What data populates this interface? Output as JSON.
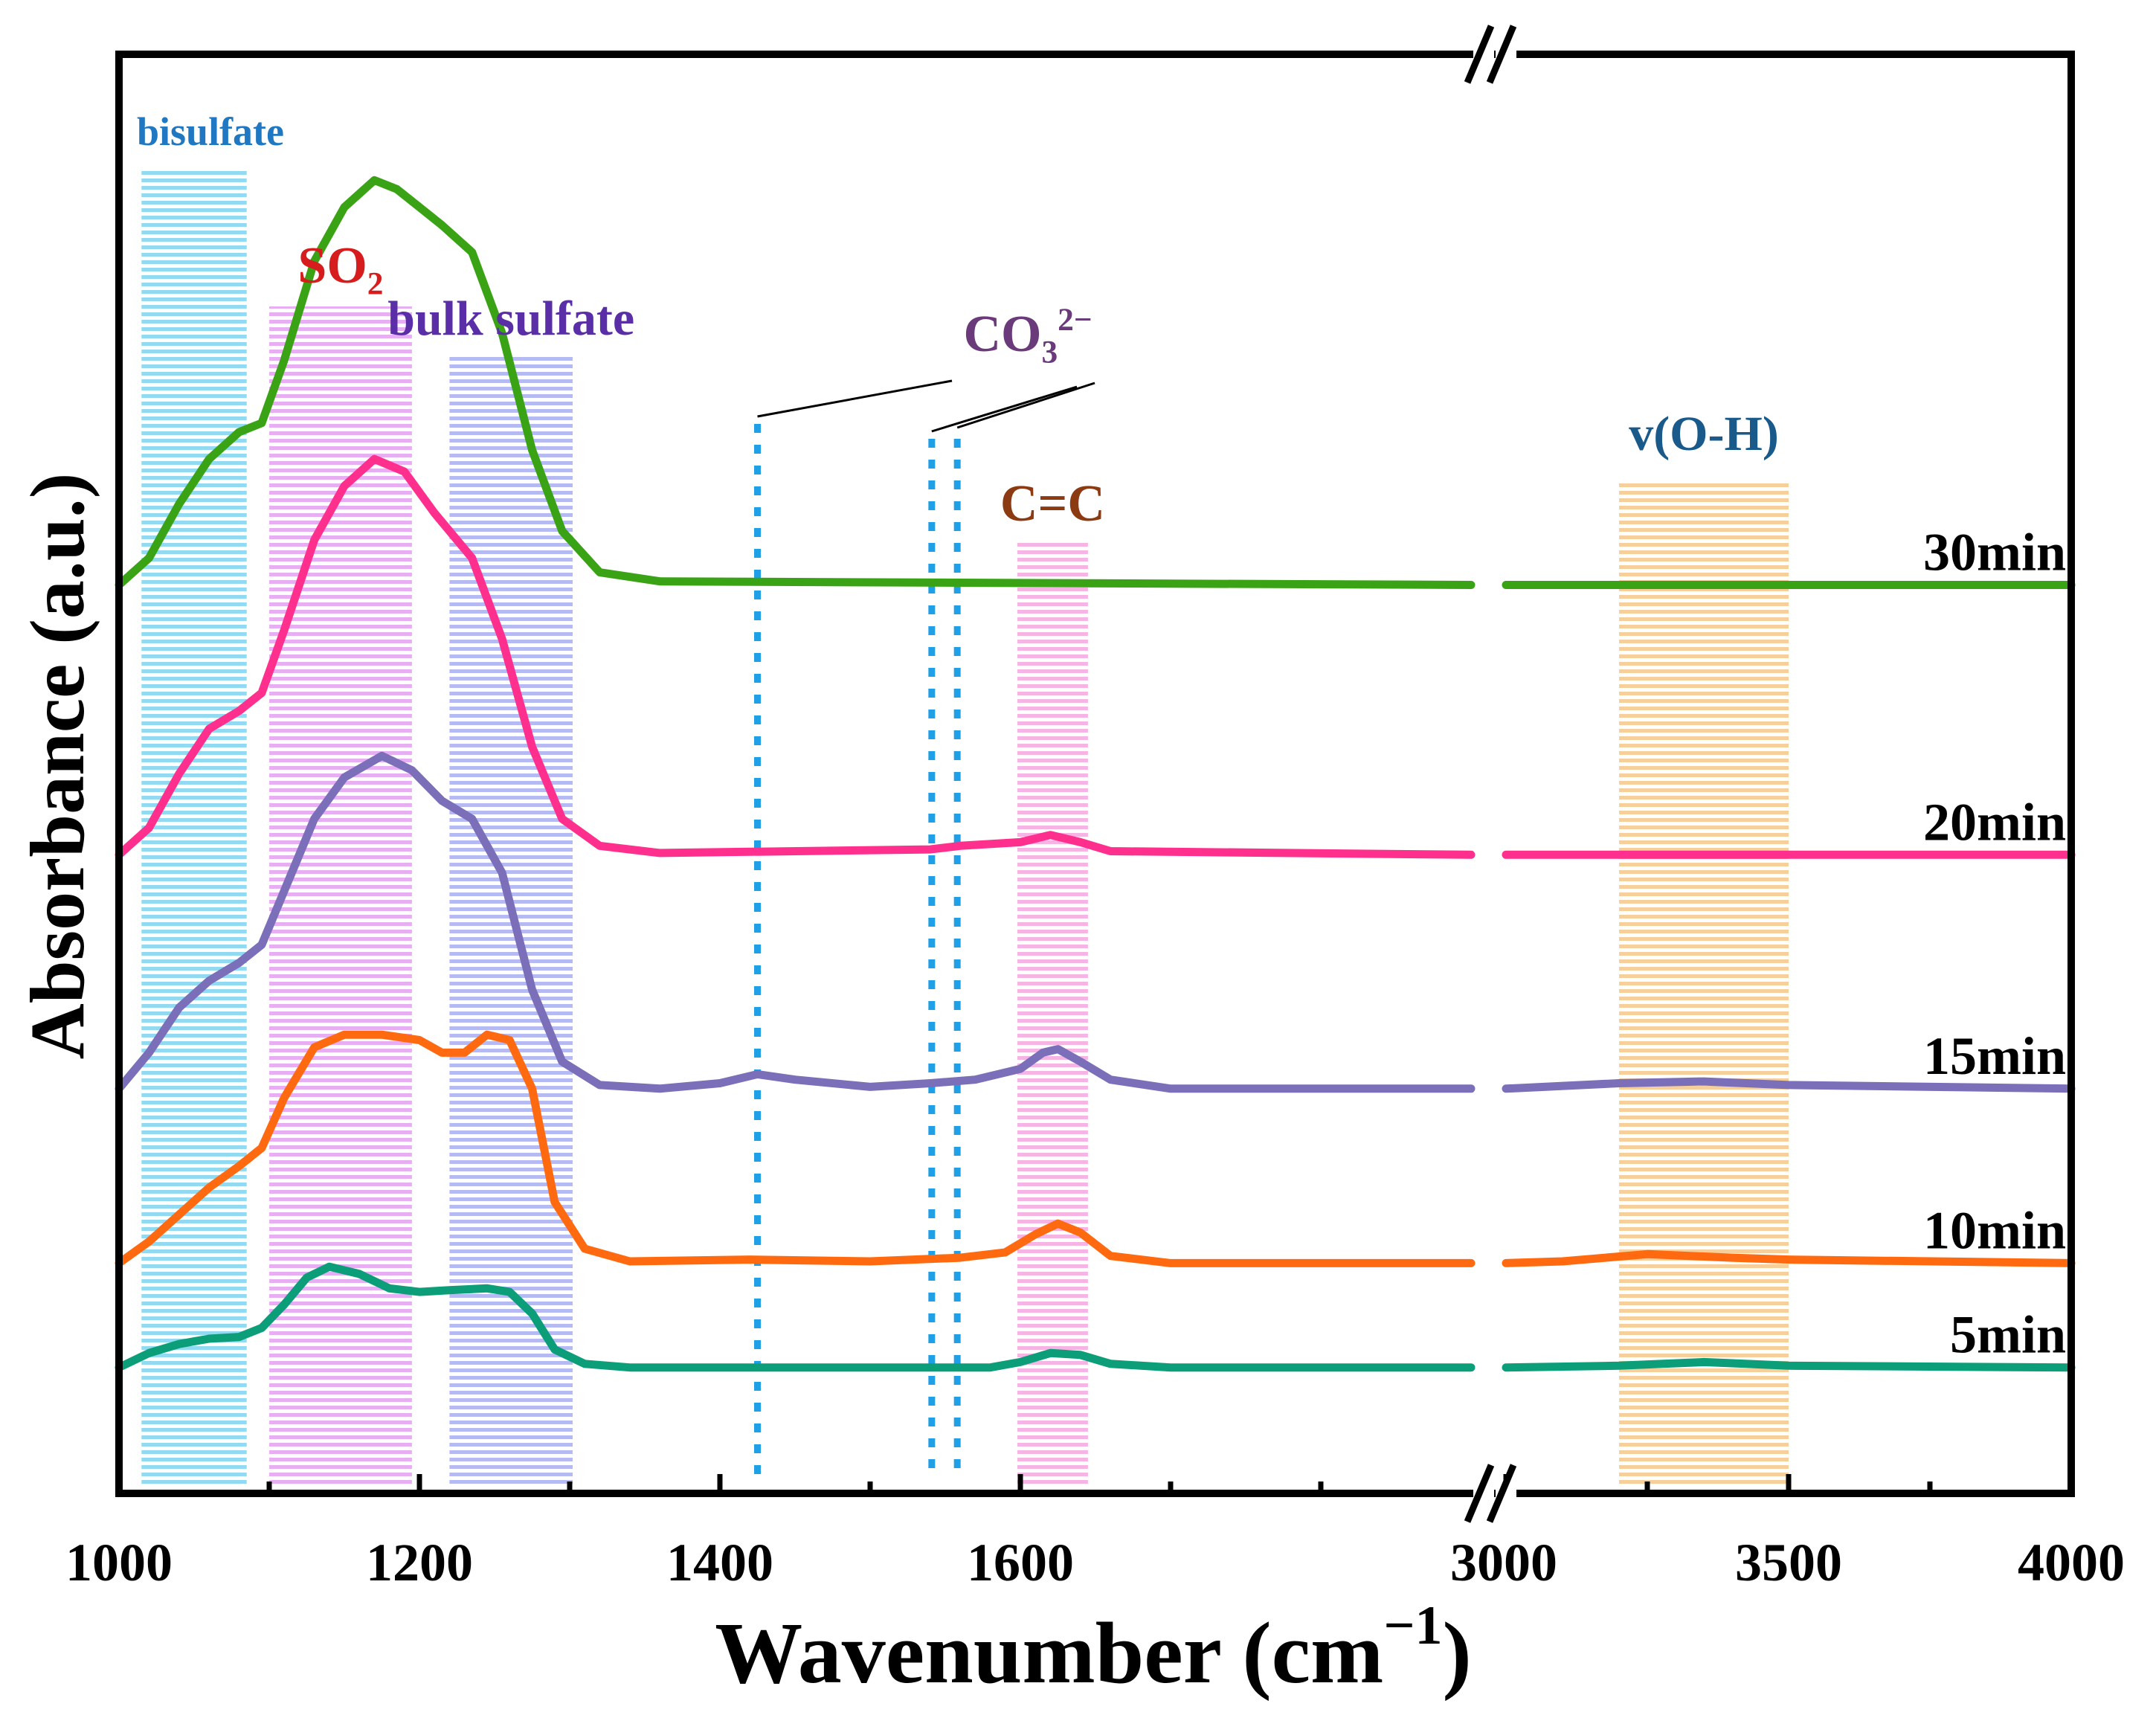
{
  "chart_data": {
    "type": "line",
    "title": "",
    "xlabel": "Wavenumber (cm",
    "xlabel_sup": "−1",
    "xlabel_close": ")",
    "ylabel": "Absorbance (a.u.)",
    "broken_axis": true,
    "segments": [
      {
        "name": "low",
        "xlim": [
          1000,
          1900
        ],
        "ticks": [
          1000,
          1200,
          1400,
          1600
        ],
        "minor_ticks": [
          1100,
          1300,
          1500,
          1700,
          1800
        ]
      },
      {
        "name": "high",
        "xlim": [
          3000,
          4000
        ],
        "ticks": [
          3000,
          3500,
          4000
        ],
        "minor_ticks": [
          3250,
          3750
        ]
      }
    ],
    "tick_labels": [
      "1000",
      "1200",
      "1400",
      "1600",
      "3000",
      "3500",
      "4000"
    ],
    "bands": [
      {
        "label": "bisulfate",
        "x_from": 1015,
        "x_to": 1085,
        "color": "#7fd3f0",
        "label_color": "#1f78c1"
      },
      {
        "label": "SO",
        "sub": "2",
        "x_from": 1100,
        "x_to": 1195,
        "color": "#e3a0f2",
        "label_color": "#d61c1c"
      },
      {
        "label": "bulk sulfate",
        "x_from": 1220,
        "x_to": 1302,
        "color": "#a9aef0",
        "label_color": "#5a2ea6"
      },
      {
        "label": "C=C",
        "x_from": 1598,
        "x_to": 1645,
        "color": "#f4a7df",
        "label_color": "#8b3a12"
      },
      {
        "label": "v(O-H)",
        "x_from": 3200,
        "x_to": 3500,
        "color": "#f6c78a",
        "label_color": "#1a5a8a"
      }
    ],
    "carbonate": {
      "label": "CO",
      "sub": "3",
      "sup": "2−",
      "lines_x": [
        1425,
        1541,
        1558
      ],
      "color": "#1fa0e6",
      "label_color": "#6b3a7a"
    },
    "series": [
      {
        "name": "30min",
        "color": "#3aa315",
        "baseline": 5.05,
        "points": [
          [
            1000,
            5.05
          ],
          [
            1020,
            5.2
          ],
          [
            1040,
            5.5
          ],
          [
            1060,
            5.75
          ],
          [
            1080,
            5.9
          ],
          [
            1095,
            5.95
          ],
          [
            1110,
            6.3
          ],
          [
            1130,
            6.85
          ],
          [
            1150,
            7.15
          ],
          [
            1170,
            7.3
          ],
          [
            1185,
            7.25
          ],
          [
            1200,
            7.15
          ],
          [
            1215,
            7.05
          ],
          [
            1235,
            6.9
          ],
          [
            1255,
            6.45
          ],
          [
            1275,
            5.8
          ],
          [
            1295,
            5.35
          ],
          [
            1320,
            5.12
          ],
          [
            1360,
            5.07
          ],
          [
            1900,
            5.05
          ],
          [
            3000,
            5.05
          ],
          [
            4000,
            5.05
          ]
        ]
      },
      {
        "name": "20min",
        "color": "#ff2f8e",
        "baseline": 3.55,
        "points": [
          [
            1000,
            3.55
          ],
          [
            1020,
            3.7
          ],
          [
            1040,
            4.0
          ],
          [
            1060,
            4.25
          ],
          [
            1080,
            4.35
          ],
          [
            1095,
            4.45
          ],
          [
            1110,
            4.8
          ],
          [
            1130,
            5.3
          ],
          [
            1150,
            5.6
          ],
          [
            1170,
            5.75
          ],
          [
            1190,
            5.68
          ],
          [
            1210,
            5.45
          ],
          [
            1235,
            5.2
          ],
          [
            1255,
            4.75
          ],
          [
            1275,
            4.15
          ],
          [
            1295,
            3.75
          ],
          [
            1320,
            3.6
          ],
          [
            1360,
            3.56
          ],
          [
            1540,
            3.58
          ],
          [
            1560,
            3.6
          ],
          [
            1600,
            3.62
          ],
          [
            1620,
            3.66
          ],
          [
            1640,
            3.62
          ],
          [
            1660,
            3.57
          ],
          [
            1900,
            3.55
          ],
          [
            3000,
            3.55
          ],
          [
            4000,
            3.55
          ]
        ]
      },
      {
        "name": "15min",
        "color": "#7a6fb8",
        "baseline": 2.25,
        "points": [
          [
            1000,
            2.25
          ],
          [
            1020,
            2.45
          ],
          [
            1040,
            2.7
          ],
          [
            1060,
            2.85
          ],
          [
            1080,
            2.95
          ],
          [
            1095,
            3.05
          ],
          [
            1110,
            3.35
          ],
          [
            1130,
            3.75
          ],
          [
            1150,
            3.98
          ],
          [
            1175,
            4.1
          ],
          [
            1195,
            4.02
          ],
          [
            1215,
            3.85
          ],
          [
            1235,
            3.75
          ],
          [
            1255,
            3.45
          ],
          [
            1275,
            2.8
          ],
          [
            1295,
            2.4
          ],
          [
            1320,
            2.27
          ],
          [
            1360,
            2.25
          ],
          [
            1400,
            2.28
          ],
          [
            1425,
            2.33
          ],
          [
            1450,
            2.3
          ],
          [
            1500,
            2.26
          ],
          [
            1540,
            2.28
          ],
          [
            1570,
            2.3
          ],
          [
            1600,
            2.36
          ],
          [
            1615,
            2.45
          ],
          [
            1625,
            2.47
          ],
          [
            1640,
            2.4
          ],
          [
            1660,
            2.3
          ],
          [
            1700,
            2.25
          ],
          [
            1900,
            2.25
          ],
          [
            3000,
            2.25
          ],
          [
            3200,
            2.28
          ],
          [
            3350,
            2.29
          ],
          [
            3500,
            2.27
          ],
          [
            4000,
            2.25
          ]
        ]
      },
      {
        "name": "10min",
        "color": "#ff6a10",
        "baseline": 1.28,
        "points": [
          [
            1000,
            1.28
          ],
          [
            1020,
            1.4
          ],
          [
            1040,
            1.55
          ],
          [
            1060,
            1.7
          ],
          [
            1080,
            1.82
          ],
          [
            1095,
            1.92
          ],
          [
            1110,
            2.2
          ],
          [
            1130,
            2.48
          ],
          [
            1150,
            2.55
          ],
          [
            1175,
            2.55
          ],
          [
            1200,
            2.52
          ],
          [
            1215,
            2.45
          ],
          [
            1230,
            2.45
          ],
          [
            1245,
            2.55
          ],
          [
            1260,
            2.52
          ],
          [
            1275,
            2.25
          ],
          [
            1290,
            1.62
          ],
          [
            1310,
            1.36
          ],
          [
            1340,
            1.29
          ],
          [
            1420,
            1.3
          ],
          [
            1500,
            1.29
          ],
          [
            1560,
            1.31
          ],
          [
            1590,
            1.34
          ],
          [
            1610,
            1.44
          ],
          [
            1625,
            1.5
          ],
          [
            1640,
            1.45
          ],
          [
            1660,
            1.32
          ],
          [
            1700,
            1.28
          ],
          [
            1900,
            1.28
          ],
          [
            3000,
            1.28
          ],
          [
            3100,
            1.29
          ],
          [
            3250,
            1.33
          ],
          [
            3400,
            1.31
          ],
          [
            3500,
            1.3
          ],
          [
            4000,
            1.28
          ]
        ]
      },
      {
        "name": "5min",
        "color": "#0c9e78",
        "baseline": 0.7,
        "points": [
          [
            1000,
            0.7
          ],
          [
            1020,
            0.78
          ],
          [
            1040,
            0.83
          ],
          [
            1060,
            0.86
          ],
          [
            1080,
            0.87
          ],
          [
            1095,
            0.92
          ],
          [
            1110,
            1.05
          ],
          [
            1125,
            1.2
          ],
          [
            1140,
            1.26
          ],
          [
            1160,
            1.22
          ],
          [
            1180,
            1.14
          ],
          [
            1200,
            1.12
          ],
          [
            1220,
            1.13
          ],
          [
            1245,
            1.14
          ],
          [
            1260,
            1.12
          ],
          [
            1275,
            1.0
          ],
          [
            1290,
            0.8
          ],
          [
            1310,
            0.72
          ],
          [
            1340,
            0.7
          ],
          [
            1580,
            0.7
          ],
          [
            1600,
            0.73
          ],
          [
            1620,
            0.78
          ],
          [
            1640,
            0.77
          ],
          [
            1660,
            0.72
          ],
          [
            1700,
            0.7
          ],
          [
            1900,
            0.7
          ],
          [
            3000,
            0.7
          ],
          [
            3200,
            0.71
          ],
          [
            3350,
            0.73
          ],
          [
            3500,
            0.71
          ],
          [
            4000,
            0.7
          ]
        ]
      }
    ]
  }
}
